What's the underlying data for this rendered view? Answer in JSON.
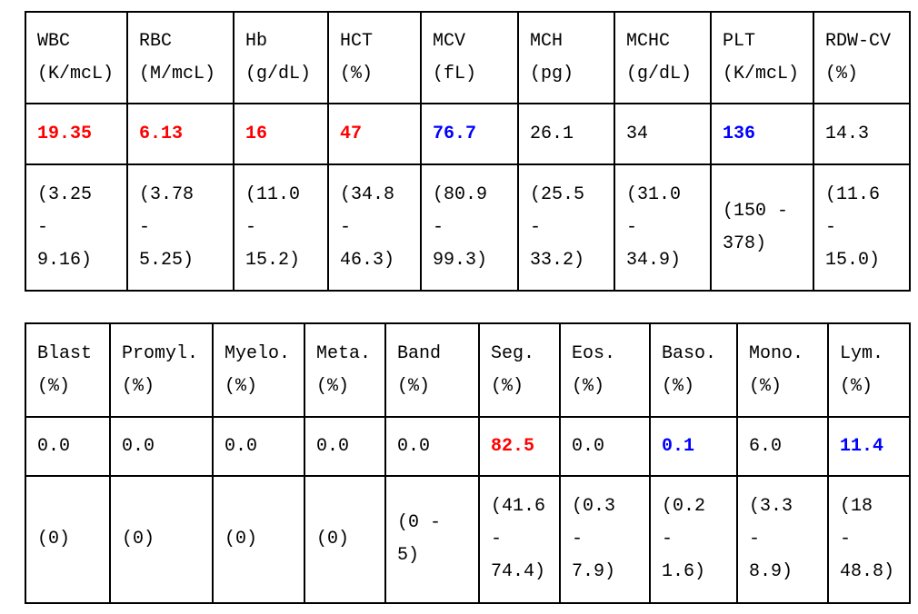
{
  "tables": [
    {
      "header": [
        {
          "name": "WBC",
          "unit": "(K/mcL)"
        },
        {
          "name": "RBC",
          "unit": "(M/mcL)"
        },
        {
          "name": "Hb",
          "unit": "(g/dL)"
        },
        {
          "name": "HCT",
          "unit": "(%)"
        },
        {
          "name": "MCV",
          "unit": "(fL)"
        },
        {
          "name": "MCH",
          "unit": "(pg)"
        },
        {
          "name": "MCHC",
          "unit": "(g/dL)"
        },
        {
          "name": "PLT",
          "unit": "(K/mcL)"
        },
        {
          "name": "RDW-CV",
          "unit": "(%)"
        }
      ],
      "values": [
        {
          "text": "19.35",
          "color": "#ff0000"
        },
        {
          "text": "6.13",
          "color": "#ff0000"
        },
        {
          "text": "16",
          "color": "#ff0000"
        },
        {
          "text": "47",
          "color": "#ff0000"
        },
        {
          "text": "76.7",
          "color": "#0000ff"
        },
        {
          "text": "26.1",
          "color": "#000000"
        },
        {
          "text": "34",
          "color": "#000000"
        },
        {
          "text": "136",
          "color": "#0000ff"
        },
        {
          "text": "14.3",
          "color": "#000000"
        }
      ],
      "ranges": [
        "(3.25\n-\n9.16)",
        "(3.78\n-\n5.25)",
        "(11.0\n-\n15.2)",
        "(34.8\n-\n46.3)",
        "(80.9\n-\n99.3)",
        "(25.5\n-\n33.2)",
        "(31.0\n-\n34.9)",
        "(150 -\n378)",
        "(11.6\n-\n15.0)"
      ]
    },
    {
      "header": [
        {
          "name": "Blast",
          "unit": "(%)"
        },
        {
          "name": "Promyl.",
          "unit": "(%)"
        },
        {
          "name": "Myelo.",
          "unit": "(%)"
        },
        {
          "name": "Meta.",
          "unit": "(%)"
        },
        {
          "name": "Band",
          "unit": "(%)"
        },
        {
          "name": "Seg.",
          "unit": "(%)"
        },
        {
          "name": "Eos.",
          "unit": "(%)"
        },
        {
          "name": "Baso.",
          "unit": "(%)"
        },
        {
          "name": "Mono.",
          "unit": "(%)"
        },
        {
          "name": "Lym.",
          "unit": "(%)"
        }
      ],
      "values": [
        {
          "text": "0.0",
          "color": "#000000"
        },
        {
          "text": "0.0",
          "color": "#000000"
        },
        {
          "text": "0.0",
          "color": "#000000"
        },
        {
          "text": "0.0",
          "color": "#000000"
        },
        {
          "text": "0.0",
          "color": "#000000"
        },
        {
          "text": "82.5",
          "color": "#ff0000"
        },
        {
          "text": "0.0",
          "color": "#000000"
        },
        {
          "text": "0.1",
          "color": "#0000ff"
        },
        {
          "text": "6.0",
          "color": "#000000"
        },
        {
          "text": "11.4",
          "color": "#0000ff"
        }
      ],
      "ranges": [
        "(0)",
        "(0)",
        "(0)",
        "(0)",
        "(0 -\n5)",
        "(41.6\n-\n74.4)",
        "(0.3\n-\n7.9)",
        "(0.2\n-\n1.6)",
        "(3.3\n-\n8.9)",
        "(18\n-\n48.8)"
      ]
    }
  ]
}
